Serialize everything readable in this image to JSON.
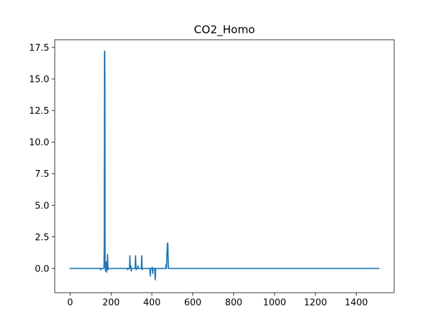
{
  "chart_data": {
    "type": "line",
    "title": "CO2_Homo",
    "xlabel": "",
    "ylabel": "",
    "xlim": [
      -75.5,
      1585.5
    ],
    "ylim": [
      -1.92,
      18.1
    ],
    "x_ticks": [
      0,
      200,
      400,
      600,
      800,
      1000,
      1200,
      1400
    ],
    "x_tick_labels": [
      "0",
      "200",
      "400",
      "600",
      "800",
      "1000",
      "1200",
      "1400"
    ],
    "y_ticks": [
      0.0,
      2.5,
      5.0,
      7.5,
      10.0,
      12.5,
      15.0,
      17.5
    ],
    "y_tick_labels": [
      "0.0",
      "2.5",
      "5.0",
      "7.5",
      "10.0",
      "12.5",
      "15.0",
      "17.5"
    ],
    "grid": false,
    "series": [
      {
        "color": "#1f77b4",
        "x": [
          0,
          148,
          149,
          150,
          151,
          155,
          160,
          165,
          166,
          167,
          168,
          169,
          170,
          171,
          172,
          173,
          174,
          175,
          176,
          177,
          178,
          179,
          180,
          181,
          182,
          183,
          184,
          185,
          186,
          187,
          188,
          190,
          195,
          200,
          280,
          282,
          284,
          290,
          291,
          292,
          293,
          294,
          295,
          296,
          297,
          298,
          299,
          300,
          301,
          302,
          310,
          318,
          319,
          320,
          321,
          322,
          323,
          324,
          330,
          331,
          332,
          333,
          334,
          340,
          345,
          348,
          349,
          350,
          351,
          352,
          353,
          354,
          355,
          356,
          360,
          380,
          390,
          391,
          392,
          393,
          394,
          400,
          401,
          402,
          403,
          404,
          405,
          406,
          410,
          414,
          415,
          416,
          417,
          418,
          419,
          420,
          421,
          430,
          440,
          460,
          465,
          467,
          468,
          469,
          470,
          471,
          472,
          473,
          474,
          475,
          476,
          477,
          478,
          479,
          480,
          481,
          482,
          483,
          490,
          1510
        ],
        "y": [
          0.0,
          0.0,
          -0.1,
          -0.1,
          0.0,
          0.0,
          0.0,
          0.0,
          0.3,
          1.9,
          17.2,
          17.1,
          15.0,
          0.5,
          0.0,
          -0.2,
          0.0,
          0.1,
          0.5,
          0.0,
          -0.3,
          0.0,
          0.3,
          0.6,
          0.0,
          1.1,
          0.5,
          0.0,
          -0.1,
          0.0,
          0.0,
          0.0,
          0.0,
          0.0,
          0.0,
          -0.1,
          0.0,
          0.0,
          0.3,
          1.0,
          0.6,
          0.0,
          0.0,
          0.0,
          0.2,
          0.0,
          -0.2,
          -0.1,
          0.0,
          0.0,
          0.0,
          0.0,
          0.6,
          1.0,
          0.5,
          0.0,
          -0.1,
          0.0,
          0.0,
          0.2,
          0.0,
          0.1,
          0.0,
          0.0,
          0.0,
          0.0,
          0.5,
          1.0,
          0.6,
          0.0,
          -0.1,
          0.0,
          0.0,
          0.0,
          0.0,
          0.0,
          0.0,
          -0.3,
          -0.6,
          -0.2,
          0.0,
          0.0,
          0.1,
          0.0,
          -0.2,
          -0.4,
          -0.1,
          0.0,
          0.0,
          0.0,
          -0.5,
          -0.9,
          -0.7,
          -0.1,
          0.0,
          0.0,
          0.0,
          0.0,
          0.0,
          0.0,
          0.0,
          0.0,
          0.1,
          0.3,
          0.1,
          0.0,
          0.4,
          1.0,
          1.3,
          1.6,
          2.0,
          2.0,
          1.9,
          1.0,
          0.2,
          0.0,
          0.0,
          0.0,
          0.0,
          0.0
        ]
      }
    ]
  }
}
